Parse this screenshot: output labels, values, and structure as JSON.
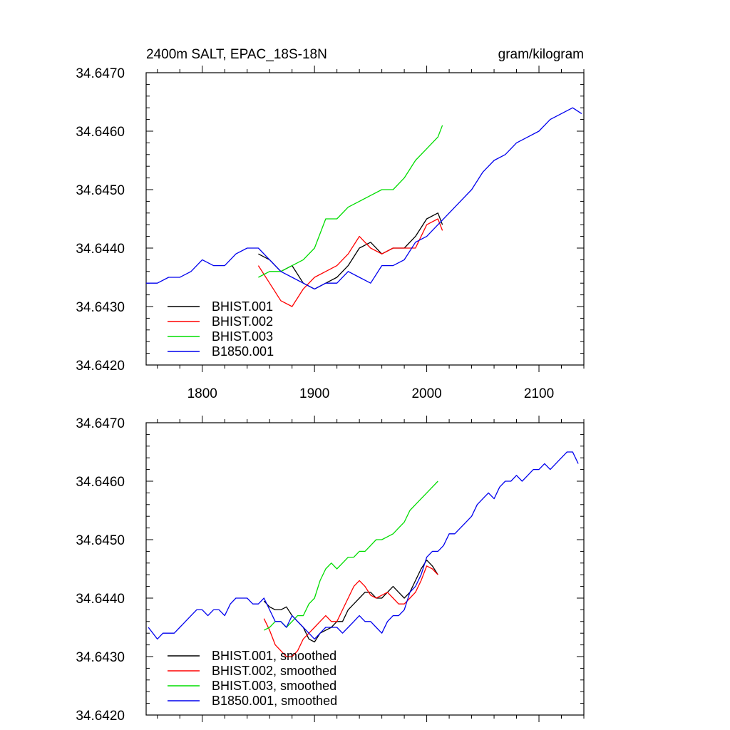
{
  "chart_data": [
    {
      "type": "line",
      "title": "2400m SALT, EPAC_18S-18N",
      "units": "gram/kilogram",
      "xlabel": "",
      "ylabel": "",
      "xlim": [
        1750,
        2140
      ],
      "ylim": [
        34.642,
        34.647
      ],
      "x_ticks": [
        1800,
        1900,
        2000,
        2100
      ],
      "x_tick_labels": [
        "1800",
        "1900",
        "2000",
        "2100"
      ],
      "y_ticks": [
        34.642,
        34.643,
        34.644,
        34.645,
        34.646,
        34.647
      ],
      "y_tick_labels": [
        "34.6420",
        "34.6430",
        "34.6440",
        "34.6450",
        "34.6460",
        "34.6470"
      ],
      "legend_position": "bottom-left",
      "series": [
        {
          "name": "BHIST.001",
          "color": "#000000",
          "x": [
            1850,
            1860,
            1870,
            1880,
            1890,
            1900,
            1910,
            1920,
            1930,
            1940,
            1950,
            1960,
            1970,
            1980,
            1990,
            2000,
            2010,
            2014
          ],
          "y": [
            34.6439,
            34.6438,
            34.6436,
            34.6437,
            34.6434,
            34.6433,
            34.6434,
            34.6435,
            34.6437,
            34.644,
            34.6441,
            34.6439,
            34.644,
            34.644,
            34.6442,
            34.6445,
            34.6446,
            34.6444
          ]
        },
        {
          "name": "BHIST.002",
          "color": "#ff0000",
          "x": [
            1850,
            1860,
            1870,
            1880,
            1890,
            1900,
            1910,
            1920,
            1930,
            1940,
            1950,
            1960,
            1970,
            1980,
            1990,
            2000,
            2010,
            2014
          ],
          "y": [
            34.6437,
            34.6434,
            34.6431,
            34.643,
            34.6433,
            34.6435,
            34.6436,
            34.6437,
            34.6439,
            34.6442,
            34.644,
            34.6439,
            34.644,
            34.644,
            34.644,
            34.6444,
            34.6445,
            34.6443
          ]
        },
        {
          "name": "BHIST.003",
          "color": "#00dd00",
          "x": [
            1850,
            1860,
            1870,
            1880,
            1890,
            1900,
            1910,
            1920,
            1930,
            1940,
            1950,
            1960,
            1970,
            1980,
            1990,
            2000,
            2010,
            2014
          ],
          "y": [
            34.6435,
            34.6436,
            34.6436,
            34.6437,
            34.6438,
            34.644,
            34.6445,
            34.6445,
            34.6447,
            34.6448,
            34.6449,
            34.645,
            34.645,
            34.6452,
            34.6455,
            34.6457,
            34.6459,
            34.6461
          ]
        },
        {
          "name": "B1850.001",
          "color": "#0000ee",
          "x": [
            1750,
            1760,
            1770,
            1780,
            1790,
            1800,
            1810,
            1820,
            1830,
            1840,
            1850,
            1860,
            1870,
            1880,
            1890,
            1900,
            1910,
            1920,
            1930,
            1940,
            1950,
            1960,
            1970,
            1980,
            1990,
            2000,
            2010,
            2020,
            2030,
            2040,
            2050,
            2060,
            2070,
            2080,
            2090,
            2100,
            2110,
            2120,
            2130,
            2138
          ],
          "y": [
            34.6434,
            34.6434,
            34.6435,
            34.6435,
            34.6436,
            34.6438,
            34.6437,
            34.6437,
            34.6439,
            34.644,
            34.644,
            34.6438,
            34.6436,
            34.6435,
            34.6434,
            34.6433,
            34.6434,
            34.6434,
            34.6436,
            34.6435,
            34.6434,
            34.6437,
            34.6437,
            34.6438,
            34.6441,
            34.6442,
            34.6444,
            34.6446,
            34.6448,
            34.645,
            34.6453,
            34.6455,
            34.6456,
            34.6458,
            34.6459,
            34.646,
            34.6462,
            34.6463,
            34.6464,
            34.6463
          ]
        }
      ]
    },
    {
      "type": "line",
      "title": "",
      "xlabel": "",
      "ylabel": "",
      "xlim": [
        1750,
        2140
      ],
      "ylim": [
        34.642,
        34.647
      ],
      "x_ticks": [
        1800,
        1900,
        2000,
        2100
      ],
      "y_ticks": [
        34.642,
        34.643,
        34.644,
        34.645,
        34.646,
        34.647
      ],
      "y_tick_labels": [
        "34.6420",
        "34.6430",
        "34.6440",
        "34.6450",
        "34.6460",
        "34.6470"
      ],
      "legend_position": "bottom-left",
      "series": [
        {
          "name": "BHIST.001, smoothed",
          "color": "#000000",
          "x": [
            1855,
            1860,
            1865,
            1870,
            1875,
            1880,
            1885,
            1890,
            1895,
            1900,
            1905,
            1910,
            1915,
            1920,
            1925,
            1930,
            1935,
            1940,
            1945,
            1950,
            1955,
            1960,
            1965,
            1970,
            1975,
            1980,
            1985,
            1990,
            1995,
            2000,
            2005,
            2010
          ],
          "y": [
            34.64395,
            34.64385,
            34.6438,
            34.6438,
            34.64385,
            34.6437,
            34.6436,
            34.6435,
            34.6433,
            34.64325,
            34.6434,
            34.64345,
            34.6435,
            34.6436,
            34.6436,
            34.6438,
            34.6439,
            34.644,
            34.6441,
            34.6441,
            34.644,
            34.644,
            34.6441,
            34.6442,
            34.6441,
            34.644,
            34.6441,
            34.6443,
            34.6445,
            34.64465,
            34.64455,
            34.6444
          ]
        },
        {
          "name": "BHIST.002, smoothed",
          "color": "#ff0000",
          "x": [
            1855,
            1860,
            1865,
            1870,
            1875,
            1880,
            1885,
            1890,
            1895,
            1900,
            1905,
            1910,
            1915,
            1920,
            1925,
            1930,
            1935,
            1940,
            1945,
            1950,
            1955,
            1960,
            1965,
            1970,
            1975,
            1980,
            1985,
            1990,
            1995,
            2000,
            2005,
            2010
          ],
          "y": [
            34.64365,
            34.64345,
            34.6432,
            34.6431,
            34.643,
            34.643,
            34.6431,
            34.6433,
            34.6434,
            34.6435,
            34.6436,
            34.6437,
            34.6436,
            34.6436,
            34.6438,
            34.644,
            34.6442,
            34.6443,
            34.6442,
            34.64405,
            34.644,
            34.64405,
            34.6441,
            34.644,
            34.6439,
            34.6439,
            34.644,
            34.6441,
            34.6443,
            34.64455,
            34.6445,
            34.6444
          ]
        },
        {
          "name": "BHIST.003, smoothed",
          "color": "#00dd00",
          "x": [
            1855,
            1860,
            1865,
            1870,
            1875,
            1880,
            1885,
            1890,
            1895,
            1900,
            1905,
            1910,
            1915,
            1920,
            1925,
            1930,
            1935,
            1940,
            1945,
            1950,
            1955,
            1960,
            1965,
            1970,
            1975,
            1980,
            1985,
            1990,
            1995,
            2000,
            2005,
            2010
          ],
          "y": [
            34.64345,
            34.6435,
            34.6436,
            34.6436,
            34.6435,
            34.6436,
            34.6437,
            34.6437,
            34.6439,
            34.644,
            34.6443,
            34.6445,
            34.6446,
            34.6445,
            34.6446,
            34.6447,
            34.6447,
            34.6448,
            34.6448,
            34.6449,
            34.645,
            34.645,
            34.64505,
            34.6451,
            34.6452,
            34.6453,
            34.6455,
            34.6456,
            34.6457,
            34.6458,
            34.6459,
            34.646
          ]
        },
        {
          "name": "B1850.001, smoothed",
          "color": "#0000ee",
          "x": [
            1752,
            1760,
            1765,
            1770,
            1775,
            1780,
            1785,
            1790,
            1795,
            1800,
            1805,
            1810,
            1815,
            1820,
            1825,
            1830,
            1835,
            1840,
            1845,
            1850,
            1855,
            1860,
            1865,
            1870,
            1875,
            1880,
            1885,
            1890,
            1895,
            1900,
            1905,
            1910,
            1915,
            1920,
            1925,
            1930,
            1935,
            1940,
            1945,
            1950,
            1955,
            1960,
            1965,
            1970,
            1975,
            1980,
            1985,
            1990,
            1995,
            2000,
            2005,
            2010,
            2015,
            2020,
            2025,
            2030,
            2035,
            2040,
            2045,
            2050,
            2055,
            2060,
            2065,
            2070,
            2075,
            2080,
            2085,
            2090,
            2095,
            2100,
            2105,
            2110,
            2115,
            2120,
            2125,
            2130,
            2135
          ],
          "y": [
            34.6435,
            34.6433,
            34.6434,
            34.6434,
            34.6434,
            34.6435,
            34.6436,
            34.6437,
            34.6438,
            34.6438,
            34.6437,
            34.6438,
            34.6438,
            34.6437,
            34.6439,
            34.644,
            34.644,
            34.644,
            34.6439,
            34.6439,
            34.644,
            34.6438,
            34.6436,
            34.6436,
            34.6435,
            34.6437,
            34.6436,
            34.6435,
            34.6434,
            34.6433,
            34.6434,
            34.6435,
            34.6435,
            34.6435,
            34.6434,
            34.6435,
            34.6436,
            34.6437,
            34.6436,
            34.6436,
            34.6435,
            34.6434,
            34.6436,
            34.6437,
            34.6437,
            34.6438,
            34.6441,
            34.6442,
            34.6444,
            34.6447,
            34.6448,
            34.6448,
            34.6449,
            34.6451,
            34.6451,
            34.6452,
            34.6453,
            34.6454,
            34.6456,
            34.6457,
            34.6458,
            34.6457,
            34.6459,
            34.646,
            34.646,
            34.6461,
            34.646,
            34.6461,
            34.6462,
            34.6462,
            34.6463,
            34.6462,
            34.6463,
            34.6464,
            34.6465,
            34.6465,
            34.6463
          ]
        }
      ]
    }
  ]
}
